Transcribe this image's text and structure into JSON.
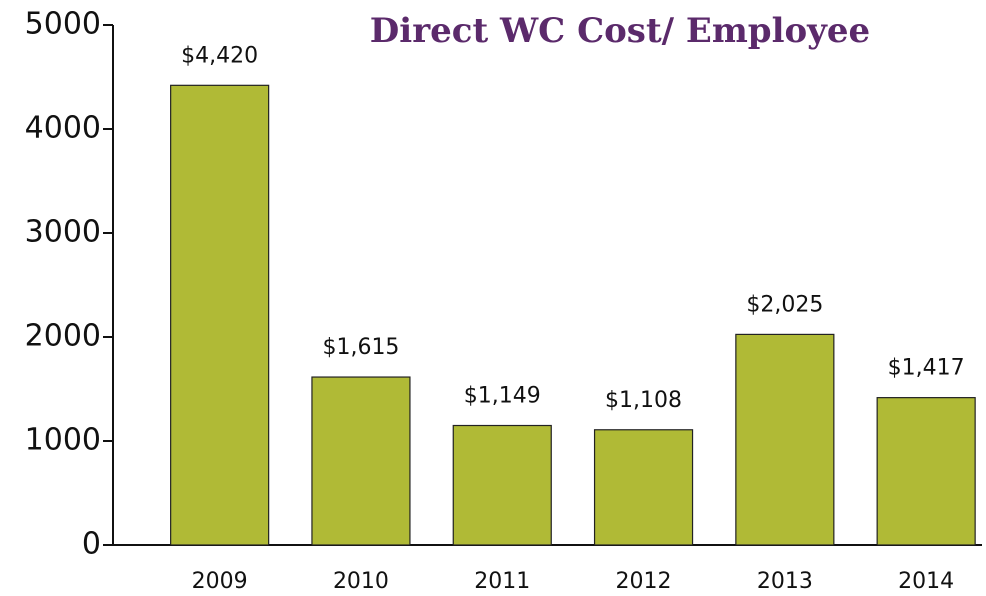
{
  "chart_data": {
    "type": "bar",
    "title": "Direct WC Cost/ Employee",
    "categories": [
      "2009",
      "2010",
      "2011",
      "2012",
      "2013",
      "2014"
    ],
    "values": [
      4420,
      1615,
      1149,
      1108,
      2025,
      1417
    ],
    "value_labels": [
      "$4,420",
      "$1,615",
      "$1,149",
      "$1,108",
      "$2,025",
      "$1,417"
    ],
    "color": "#b0ba36",
    "ylim": [
      0,
      5000
    ],
    "yticks": [
      0,
      1000,
      2000,
      3000,
      4000,
      5000
    ],
    "grid": false
  }
}
